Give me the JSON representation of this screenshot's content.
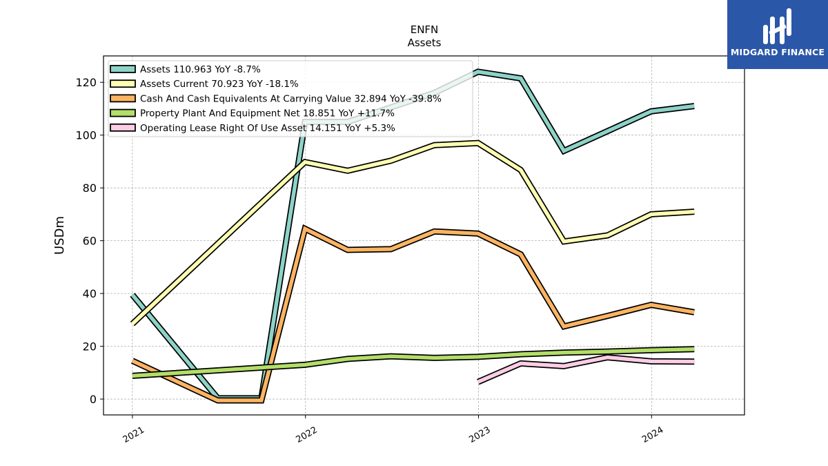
{
  "chart_data": {
    "type": "line",
    "title": "ENFN",
    "subtitle": "Assets",
    "ylabel": "USDm",
    "xlabel": "",
    "ylim": [
      -6,
      130
    ],
    "xlim": [
      "2020-11-01",
      "2024-07-15"
    ],
    "yticks": [
      0,
      20,
      40,
      60,
      80,
      100,
      120
    ],
    "xticks": [
      {
        "label": "2021",
        "date": "2021-01-01"
      },
      {
        "label": "2022",
        "date": "2022-01-01"
      },
      {
        "label": "2023",
        "date": "2023-01-01"
      },
      {
        "label": "2024",
        "date": "2024-01-01"
      }
    ],
    "grid": true,
    "legend_position": "top-left",
    "series": [
      {
        "name": "Assets  110.963 YoY -8.7%",
        "color": "#8dd3c7",
        "points": [
          [
            "2021-01-01",
            39.5
          ],
          [
            "2021-06-30",
            0.3
          ],
          [
            "2021-09-30",
            0.3
          ],
          [
            "2021-12-31",
            105.0
          ],
          [
            "2022-03-31",
            105.0
          ],
          [
            "2022-06-30",
            110.5
          ],
          [
            "2022-09-30",
            116.0
          ],
          [
            "2022-12-31",
            124.0
          ],
          [
            "2023-03-31",
            121.5
          ],
          [
            "2023-06-30",
            94.0
          ],
          [
            "2023-09-30",
            101.5
          ],
          [
            "2023-12-31",
            109.0
          ],
          [
            "2024-03-31",
            111.0
          ]
        ]
      },
      {
        "name": "Assets Current  70.923 YoY -18.1%",
        "color": "#ffffb3",
        "points": [
          [
            "2021-01-01",
            28.5
          ],
          [
            "2021-12-31",
            89.8
          ],
          [
            "2022-03-31",
            86.5
          ],
          [
            "2022-06-30",
            90.3
          ],
          [
            "2022-09-30",
            96.2
          ],
          [
            "2022-12-31",
            97.0
          ],
          [
            "2023-03-31",
            86.8
          ],
          [
            "2023-06-30",
            59.7
          ],
          [
            "2023-09-30",
            62.0
          ],
          [
            "2023-12-31",
            70.0
          ],
          [
            "2024-03-31",
            71.0
          ]
        ]
      },
      {
        "name": "Cash And Cash Equivalents At Carrying Value  32.894 YoY -39.8%",
        "color": "#fdb462",
        "points": [
          [
            "2021-01-01",
            14.5
          ],
          [
            "2021-06-30",
            -0.5
          ],
          [
            "2021-09-30",
            -0.5
          ],
          [
            "2021-12-31",
            64.5
          ],
          [
            "2022-03-31",
            56.5
          ],
          [
            "2022-06-30",
            56.8
          ],
          [
            "2022-09-30",
            63.5
          ],
          [
            "2022-12-31",
            62.7
          ],
          [
            "2023-03-31",
            54.8
          ],
          [
            "2023-06-30",
            27.5
          ],
          [
            "2023-09-30",
            31.5
          ],
          [
            "2023-12-31",
            35.7
          ],
          [
            "2024-03-31",
            32.9
          ]
        ]
      },
      {
        "name": "Property Plant And Equipment Net  18.851 YoY +11.7%",
        "color": "#b3de69",
        "points": [
          [
            "2021-01-01",
            8.8
          ],
          [
            "2021-12-31",
            13.0
          ],
          [
            "2022-03-31",
            15.2
          ],
          [
            "2022-06-30",
            16.2
          ],
          [
            "2022-09-30",
            15.6
          ],
          [
            "2022-12-31",
            16.0
          ],
          [
            "2023-03-31",
            17.0
          ],
          [
            "2023-06-30",
            17.6
          ],
          [
            "2023-09-30",
            18.0
          ],
          [
            "2023-12-31",
            18.5
          ],
          [
            "2024-03-31",
            18.9
          ]
        ]
      },
      {
        "name": "Operating Lease Right Of Use Asset  14.151 YoY +5.3%",
        "color": "#fccde5",
        "points": [
          [
            "2022-12-31",
            6.5
          ],
          [
            "2023-03-31",
            13.5
          ],
          [
            "2023-06-30",
            12.5
          ],
          [
            "2023-09-30",
            15.8
          ],
          [
            "2023-12-31",
            14.3
          ],
          [
            "2024-03-31",
            14.2
          ]
        ]
      }
    ]
  },
  "watermark": {
    "brand": "MIDGARD FINANCE",
    "background_color": "#2b57a8"
  }
}
